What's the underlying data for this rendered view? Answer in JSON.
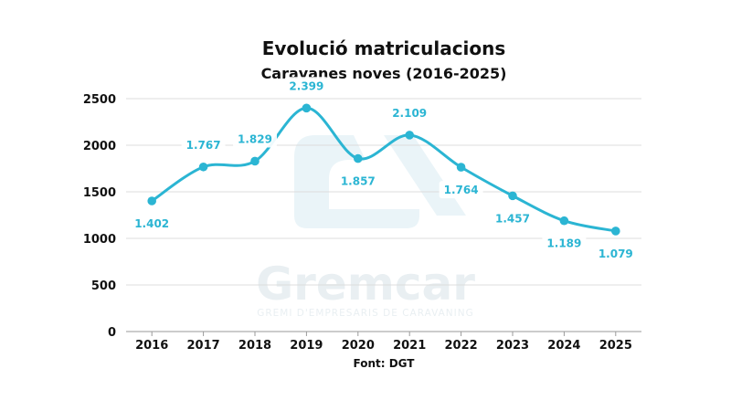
{
  "chart_data": {
    "type": "line",
    "title": "Evolució matriculacions",
    "subtitle": "Caravanes noves (2016-2025)",
    "categories": [
      "2016",
      "2017",
      "2018",
      "2019",
      "2020",
      "2021",
      "2022",
      "2023",
      "2024",
      "2025"
    ],
    "values": [
      1402,
      1767,
      1829,
      2399,
      1857,
      2109,
      1764,
      1457,
      1189,
      1079
    ],
    "data_labels": [
      "1.402",
      "1.767",
      "1.829",
      "2.399",
      "1.857",
      "2.109",
      "1.764",
      "1.457",
      "1.189",
      "1.079"
    ],
    "y_ticks": [
      "0",
      "500",
      "1000",
      "1500",
      "2000",
      "2500"
    ],
    "ylim": [
      0,
      2500
    ],
    "xlabel": "",
    "ylabel": "",
    "grid": true,
    "legend": "none",
    "smooth": true,
    "line_color": "#2bb5d3",
    "source": "Font: DGT"
  },
  "watermark": {
    "brand": "Gremcar",
    "tagline": "GREMI D'EMPRESARIS DE CARAVANING"
  }
}
